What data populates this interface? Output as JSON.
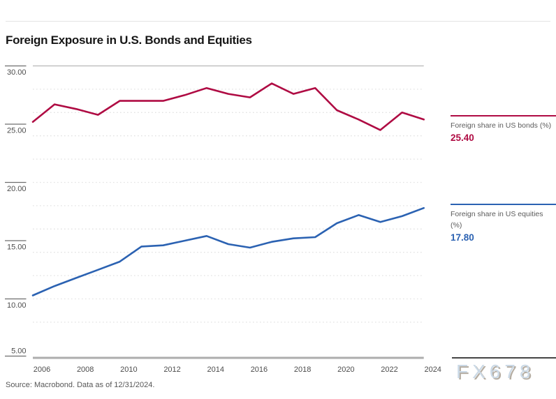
{
  "source": "Source: Macrobond. Data as of 12/31/2024.",
  "watermark": "FX678",
  "colors": {
    "bonds": "#af0b43",
    "equities": "#2b62b2",
    "grid": "#e2e2e2",
    "axis": "#adadad",
    "plot_border": "#a9a9a9",
    "tick": "#6e6e6e",
    "tick_text": "#4c4c4c",
    "title_text": "#161616",
    "watermark_text": "#cbd9e6"
  },
  "legend": {
    "position": "right",
    "bonds": {
      "label": "Foreign share in US bonds (%)",
      "value": "25.40"
    },
    "equities": {
      "label": "Foreign share in US equities (%)",
      "value": "17.80"
    }
  },
  "chart_data": {
    "type": "line",
    "title": "Foreign Exposure in U.S. Bonds and Equities",
    "xlabel": "",
    "ylabel": "",
    "xlim": [
      2006,
      2024
    ],
    "ylim": [
      5,
      30
    ],
    "grid": "dotted-horizontal",
    "x": [
      2006,
      2007,
      2008,
      2009,
      2010,
      2011,
      2012,
      2013,
      2014,
      2015,
      2016,
      2017,
      2018,
      2019,
      2020,
      2021,
      2022,
      2023,
      2024
    ],
    "series": [
      {
        "name": "Foreign share in US bonds (%)",
        "color_key": "bonds",
        "last_value_label": "25.40",
        "values": [
          25.2,
          26.7,
          26.3,
          25.8,
          27.0,
          27.0,
          27.0,
          27.5,
          28.1,
          27.6,
          27.3,
          28.5,
          27.6,
          28.1,
          26.2,
          25.4,
          24.5,
          26.0,
          25.4
        ]
      },
      {
        "name": "Foreign share in US equities (%)",
        "color_key": "equities",
        "last_value_label": "17.80",
        "values": [
          10.3,
          11.1,
          11.8,
          12.5,
          13.2,
          14.5,
          14.6,
          15.0,
          15.4,
          14.7,
          14.4,
          14.9,
          15.2,
          15.3,
          16.5,
          17.2,
          16.6,
          17.1,
          17.8
        ]
      }
    ],
    "x_tick_labels": [
      "2006",
      "2008",
      "2010",
      "2012",
      "2014",
      "2016",
      "2018",
      "2020",
      "2022",
      "2024"
    ],
    "y_ticks": [
      {
        "label": "30.00",
        "value": 30
      },
      {
        "label": "25.00",
        "value": 25
      },
      {
        "label": "20.00",
        "value": 20
      },
      {
        "label": "15.00",
        "value": 15
      },
      {
        "label": "10.00",
        "value": 10
      },
      {
        "label": "5.00",
        "value": 5
      }
    ],
    "gridline_values": [
      28,
      26,
      24,
      22,
      20,
      18,
      16,
      14,
      12,
      10,
      8
    ]
  }
}
